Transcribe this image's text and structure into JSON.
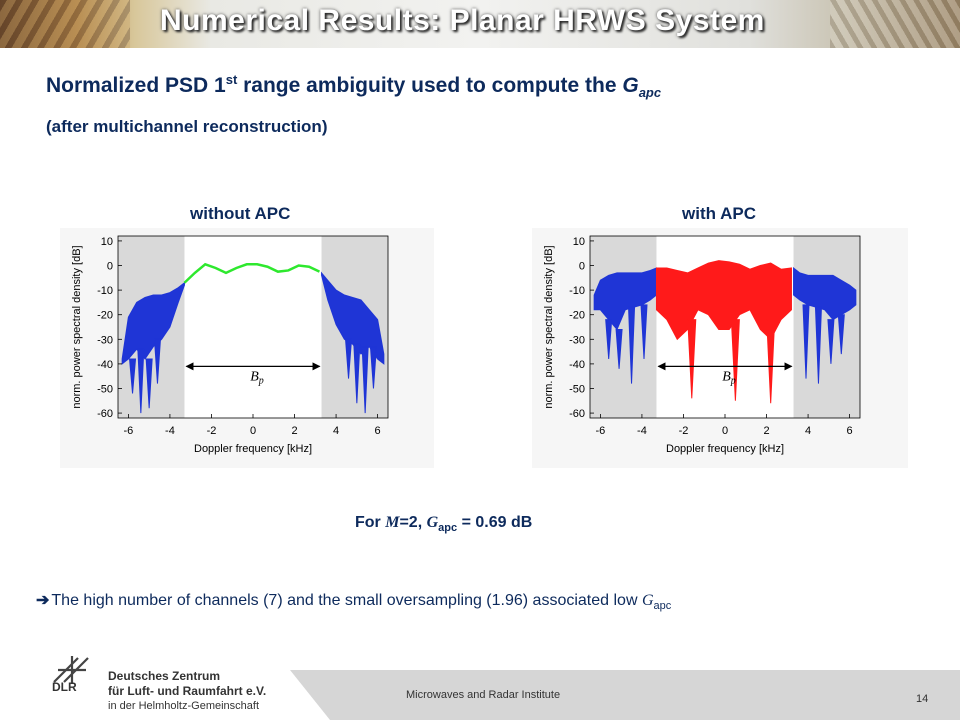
{
  "slide": {
    "title": "Numerical Results: Planar HRWS System",
    "heading_main": "Normalized PSD 1",
    "heading_sup": "st",
    "heading_rest": " range ambiguity used to compute the ",
    "heading_g": "G",
    "heading_sub": "apc",
    "subheading": "(after multichannel reconstruction)",
    "left_label": "without APC",
    "right_label": "with APC",
    "result_prefix": "For ",
    "result_m": "M",
    "result_m_val": "=2, ",
    "result_g": "G",
    "result_g_sub": "apc",
    "result_value": " = 0.69 dB",
    "note_arrow": "➔",
    "note_text": "The high number of channels (7) and the small oversampling (1.96) associated low ",
    "note_g": "G",
    "note_g_sub": "apc",
    "footer_institute": "Microwaves and Radar Institute",
    "page_number": "14",
    "logo": {
      "abbr": "DLR",
      "line1": "Deutsches Zentrum",
      "line2": "für Luft- und Raumfahrt e.V.",
      "line3": "in der Helmholtz-Gemeinschaft"
    }
  },
  "chart_data": [
    {
      "type": "area",
      "panel": "without APC",
      "xlabel": "Doppler frequency [kHz]",
      "ylabel": "norm. power spectral density [dB]",
      "xlim": [
        -6.5,
        6.5
      ],
      "ylim": [
        -62,
        12
      ],
      "xticks": [
        -6,
        -4,
        -2,
        0,
        2,
        4,
        6
      ],
      "yticks": [
        10,
        0,
        -10,
        -20,
        -30,
        -40,
        -50,
        -60
      ],
      "processed_band_khz": [
        -3.3,
        3.3
      ],
      "bandwidth_label": "Bp",
      "colors": {
        "outside": "#1f35d6",
        "inside": "#2ee82e",
        "shade": "#d9d9d9"
      },
      "series": [
        {
          "name": "inside",
          "x": [
            -3.3,
            -2.8,
            -2.3,
            -1.8,
            -1.3,
            -0.8,
            -0.3,
            0.2,
            0.7,
            1.2,
            1.7,
            2.2,
            2.7,
            3.2
          ],
          "y": [
            -7,
            -3,
            0.5,
            -1,
            -3,
            -1,
            0.5,
            0.5,
            -0.5,
            -2.5,
            -2,
            0,
            -0.5,
            -2.5
          ]
        },
        {
          "name": "outside-upper",
          "x": [
            -6.3,
            -6,
            -5.6,
            -5.2,
            -4.8,
            -4.4,
            -4,
            -3.6,
            -3.3,
            3.3,
            3.6,
            4,
            4.4,
            4.8,
            5.2,
            5.6,
            6,
            6.3
          ],
          "y": [
            -38,
            -21,
            -15,
            -13,
            -12,
            -12,
            -11,
            -9,
            -7,
            -3,
            -6,
            -10,
            -12,
            -13,
            -14,
            -18,
            -22,
            -36
          ]
        },
        {
          "name": "outside-lower",
          "x": [
            -6.3,
            -6,
            -5.6,
            -5.2,
            -4.8,
            -4.4,
            -4,
            -3.6,
            -3.3,
            3.3,
            3.6,
            4,
            4.4,
            4.8,
            5.2,
            5.6,
            6,
            6.3
          ],
          "y": [
            -40,
            -38,
            -34,
            -38,
            -33,
            -30,
            -25,
            -15,
            -8,
            -4,
            -14,
            -24,
            -30,
            -32,
            -36,
            -33,
            -38,
            -40
          ]
        },
        {
          "name": "nulls",
          "x": [
            -5.8,
            -5.4,
            -5.0,
            -4.6,
            4.6,
            5.0,
            5.4,
            5.8
          ],
          "y": [
            -52,
            -60,
            -58,
            -48,
            -46,
            -56,
            -60,
            -50
          ]
        }
      ]
    },
    {
      "type": "area",
      "panel": "with APC",
      "xlabel": "Doppler frequency [kHz]",
      "ylabel": "norm. power spectral density [dB]",
      "xlim": [
        -6.5,
        6.5
      ],
      "ylim": [
        -62,
        12
      ],
      "xticks": [
        -6,
        -4,
        -2,
        0,
        2,
        4,
        6
      ],
      "yticks": [
        10,
        0,
        -10,
        -20,
        -30,
        -40,
        -50,
        -60
      ],
      "processed_band_khz": [
        -3.3,
        3.3
      ],
      "bandwidth_label": "Bp",
      "colors": {
        "outside": "#1f35d6",
        "inside": "#ff1a1a",
        "shade": "#d9d9d9"
      },
      "series": [
        {
          "name": "inside-upper",
          "x": [
            -3.3,
            -2.8,
            -2.3,
            -1.8,
            -1.3,
            -0.8,
            -0.3,
            0.2,
            0.7,
            1.2,
            1.7,
            2.2,
            2.7,
            3.2
          ],
          "y": [
            -1,
            -1,
            -2,
            -3,
            -1,
            1,
            2,
            1.5,
            0.5,
            -1.5,
            0,
            1,
            -1.5,
            -1
          ]
        },
        {
          "name": "inside-lower",
          "x": [
            -3.3,
            -2.8,
            -2.3,
            -1.8,
            -1.3,
            -0.8,
            -0.3,
            0.2,
            0.7,
            1.2,
            1.7,
            2.2,
            2.7,
            3.2
          ],
          "y": [
            -18,
            -22,
            -30,
            -26,
            -18,
            -20,
            -26,
            -26,
            -20,
            -18,
            -26,
            -30,
            -22,
            -18
          ]
        },
        {
          "name": "inside-nulls",
          "x": [
            -1.6,
            0.5,
            2.2
          ],
          "y": [
            -54,
            -55,
            -56
          ]
        },
        {
          "name": "outside-upper",
          "x": [
            -6.3,
            -6,
            -5.6,
            -5.2,
            -4.8,
            -4.4,
            -4,
            -3.6,
            -3.3,
            3.3,
            3.6,
            4,
            4.4,
            4.8,
            5.2,
            5.6,
            6,
            6.3
          ],
          "y": [
            -12,
            -6,
            -4,
            -3,
            -3,
            -3,
            -3,
            -2,
            -1,
            -1,
            -3,
            -4,
            -4,
            -4,
            -4,
            -6,
            -8,
            -10
          ]
        },
        {
          "name": "outside-lower",
          "x": [
            -6.3,
            -6,
            -5.6,
            -5.2,
            -4.8,
            -4.4,
            -4,
            -3.6,
            -3.3,
            3.3,
            3.6,
            4,
            4.4,
            4.8,
            5.2,
            5.6,
            6,
            6.3
          ],
          "y": [
            -18,
            -18,
            -22,
            -26,
            -18,
            -17,
            -16,
            -14,
            -12,
            -12,
            -14,
            -16,
            -17,
            -18,
            -22,
            -20,
            -18,
            -16
          ]
        },
        {
          "name": "outside-nulls",
          "x": [
            -5.6,
            -5.1,
            -4.5,
            -3.9,
            3.9,
            4.5,
            5.1,
            5.6
          ],
          "y": [
            -38,
            -42,
            -48,
            -38,
            -46,
            -48,
            -40,
            -36
          ]
        }
      ]
    }
  ]
}
